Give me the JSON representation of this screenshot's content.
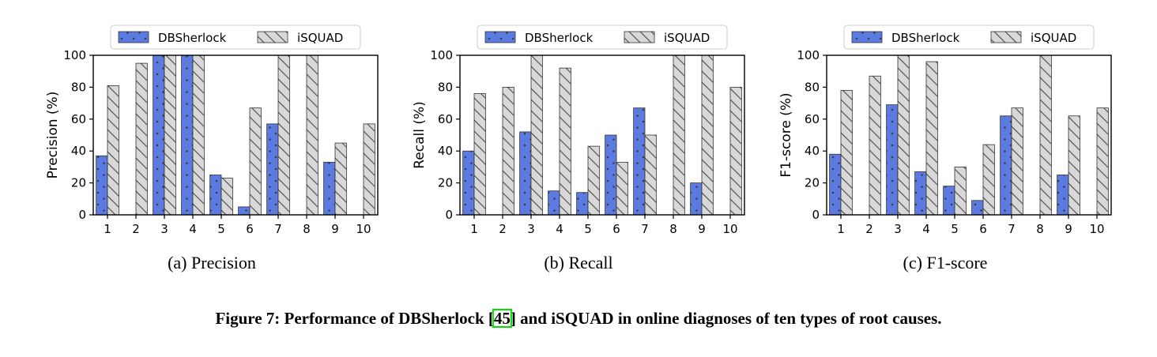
{
  "figure_caption": {
    "prefix": "Figure 7: Performance of DBSherlock [",
    "ref": "45",
    "suffix": "] and iSQUAD in online diagnoses of ten types of root causes."
  },
  "colors": {
    "dbsherlock": "#5b7be0",
    "isquad": "#d8d8d8",
    "edge": "#333333",
    "ref_box": "#00e000"
  },
  "chart_data": [
    {
      "type": "bar",
      "categories": [
        "1",
        "2",
        "3",
        "4",
        "5",
        "6",
        "7",
        "8",
        "9",
        "10"
      ],
      "series": [
        {
          "name": "DBSherlock",
          "values": [
            37,
            0,
            100,
            100,
            25,
            5,
            57,
            0,
            33,
            0
          ]
        },
        {
          "name": "iSQUAD",
          "values": [
            81,
            95,
            100,
            100,
            23,
            67,
            100,
            100,
            45,
            57
          ]
        }
      ],
      "ylabel": "Precision (%)",
      "xlabel": "",
      "ylim": [
        0,
        100
      ],
      "yticks": [
        "0",
        "20",
        "40",
        "60",
        "80",
        "100"
      ],
      "caption": "(a)  Precision",
      "legend": "top-center"
    },
    {
      "type": "bar",
      "categories": [
        "1",
        "2",
        "3",
        "4",
        "5",
        "6",
        "7",
        "8",
        "9",
        "10"
      ],
      "series": [
        {
          "name": "DBSherlock",
          "values": [
            40,
            0,
            52,
            15,
            14,
            50,
            67,
            0,
            20,
            0
          ]
        },
        {
          "name": "iSQUAD",
          "values": [
            76,
            80,
            100,
            92,
            43,
            33,
            50,
            100,
            100,
            80
          ]
        }
      ],
      "ylabel": "Recall (%)",
      "xlabel": "",
      "ylim": [
        0,
        100
      ],
      "yticks": [
        "0",
        "20",
        "40",
        "60",
        "80",
        "100"
      ],
      "caption": "(b)  Recall",
      "legend": "top-center"
    },
    {
      "type": "bar",
      "categories": [
        "1",
        "2",
        "3",
        "4",
        "5",
        "6",
        "7",
        "8",
        "9",
        "10"
      ],
      "series": [
        {
          "name": "DBSherlock",
          "values": [
            38,
            0,
            69,
            27,
            18,
            9,
            62,
            0,
            25,
            0
          ]
        },
        {
          "name": "iSQUAD",
          "values": [
            78,
            87,
            100,
            96,
            30,
            44,
            67,
            100,
            62,
            67
          ]
        }
      ],
      "ylabel": "F1-score (%)",
      "xlabel": "",
      "ylim": [
        0,
        100
      ],
      "yticks": [
        "0",
        "20",
        "40",
        "60",
        "80",
        "100"
      ],
      "caption": "(c)  F1-score",
      "legend": "top-center"
    }
  ]
}
